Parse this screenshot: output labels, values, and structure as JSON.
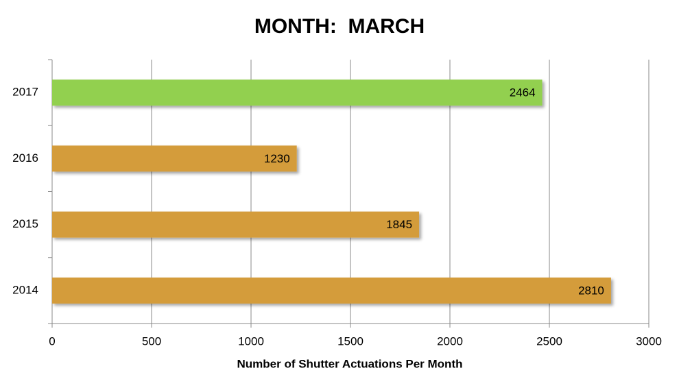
{
  "chart_data": {
    "type": "hbar",
    "title": "MONTH:  MARCH",
    "xlabel": "Number of Shutter Actuations Per Month",
    "categories": [
      "2014",
      "2015",
      "2016",
      "2017"
    ],
    "values": [
      2810,
      1845,
      1230,
      2464
    ],
    "colors": [
      "#d49c3a",
      "#d49c3a",
      "#d49c3a",
      "#92d050"
    ],
    "xlim": [
      0,
      3000
    ],
    "xticks": [
      0,
      500,
      1000,
      1500,
      2000,
      2500,
      3000
    ],
    "grid": true
  }
}
